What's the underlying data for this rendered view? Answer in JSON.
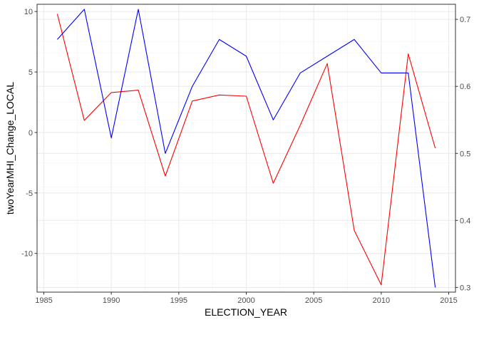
{
  "chart_data": {
    "type": "line",
    "xlabel": "ELECTION_YEAR",
    "ylabel": "twoYearMHI_Change_LOCAL",
    "y2label": "",
    "xlim": [
      1984.5,
      2015.5
    ],
    "ylim": [
      -13.2,
      10.6
    ],
    "y2lim": [
      0.293,
      0.7225
    ],
    "x_ticks": [
      1985,
      1990,
      1995,
      2000,
      2005,
      2010,
      2015
    ],
    "y_ticks": [
      -10,
      -5,
      0,
      5,
      10
    ],
    "y2_ticks": [
      0.3,
      0.4,
      0.5,
      0.6,
      0.7
    ],
    "x_tick_labels": [
      "1985",
      "1990",
      "1995",
      "2000",
      "2005",
      "2010",
      "2015"
    ],
    "y_tick_labels": [
      "-10",
      "-5",
      "0",
      "5",
      "10"
    ],
    "y2_tick_labels": [
      "0.3",
      "0.4",
      "0.5",
      "0.6",
      "0.7"
    ],
    "grid": true,
    "theme": "bw",
    "x": [
      1986,
      1988,
      1990,
      1992,
      1994,
      1996,
      1998,
      2000,
      2002,
      2004,
      2006,
      2008,
      2010,
      2012,
      2014
    ],
    "series": [
      {
        "axis": "left",
        "color": "#ff0000",
        "values": [
          9.8,
          1.0,
          3.3,
          3.5,
          -3.6,
          2.6,
          3.1,
          3.0,
          -4.2,
          0.6,
          5.7,
          -8.1,
          -12.6,
          6.5,
          -1.3
        ]
      },
      {
        "axis": "right",
        "color": "#0000ff",
        "values": [
          0.67,
          0.715,
          0.523,
          0.715,
          0.5,
          0.6,
          0.67,
          0.645,
          0.55,
          0.62,
          0.645,
          0.67,
          0.62,
          0.62,
          0.3
        ]
      }
    ]
  }
}
